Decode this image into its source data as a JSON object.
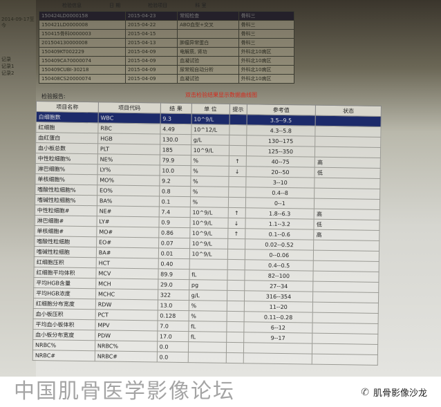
{
  "left_panel": {
    "items": [
      "2014-09-17至今",
      "记录",
      "记录1",
      "记录2"
    ]
  },
  "top_tabs": [
    "检验信息",
    "日 期",
    "检验项目",
    "科 室"
  ],
  "records": [
    [
      "150424LD0000158",
      "2015-04-23",
      "常规检查",
      "骨科三"
    ],
    [
      "150421LD0000008",
      "2015-04-22",
      "ABO血型+交叉",
      "骨科三"
    ],
    [
      "150415骨科0000003",
      "2015-04-15",
      "",
      "骨科三"
    ],
    [
      "201504130000008",
      "2015-04-13",
      "肿瘤异常蛋白",
      "骨科三"
    ],
    [
      "150409KT002229",
      "2015-04-09",
      "电解质, 肾功",
      "外科北10病区"
    ],
    [
      "150409CA70000074",
      "2015-04-09",
      "血凝试验",
      "外科北10病区"
    ],
    [
      "150409CUBI-30218",
      "2015-04-09",
      "尿常规自动分析",
      "外科北10病区"
    ],
    [
      "150408CS20000074",
      "2015-04-09",
      "血凝试验",
      "外科北10病区"
    ]
  ],
  "report": {
    "label": "检验报告:",
    "hint": "双击检验结果显示数据曲线图",
    "hint_color": "#d42a1c"
  },
  "table": {
    "headers": [
      "项目名称",
      "项目代码",
      "结 果",
      "单 位",
      "提示",
      "参考值",
      "状态"
    ],
    "rows": [
      [
        "白细胞数",
        "WBC",
        "9.3",
        "10^9/L",
        "",
        "3.5--9.5",
        ""
      ],
      [
        "红细胞",
        "RBC",
        "4.49",
        "10^12/L",
        "",
        "4.3--5.8",
        ""
      ],
      [
        "血红蛋白",
        "HGB",
        "130.0",
        "g/L",
        "",
        "130--175",
        ""
      ],
      [
        "血小板总数",
        "PLT",
        "185",
        "10^9/L",
        "",
        "125--350",
        ""
      ],
      [
        "中性粒细胞%",
        "NE%",
        "79.9",
        "%",
        "↑",
        "40--75",
        "高"
      ],
      [
        "淋巴细胞%",
        "LY%",
        "10.0",
        "%",
        "↓",
        "20--50",
        "低"
      ],
      [
        "单核细胞%",
        "MO%",
        "9.2",
        "%",
        "",
        "3--10",
        ""
      ],
      [
        "嗜酸性粒细胞%",
        "EO%",
        "0.8",
        "%",
        "",
        "0.4--8",
        ""
      ],
      [
        "嗜碱性粒细胞%",
        "BA%",
        "0.1",
        "%",
        "",
        "0--1",
        ""
      ],
      [
        "中性粒细胞#",
        "NE#",
        "7.4",
        "10^9/L",
        "↑",
        "1.8--6.3",
        "高"
      ],
      [
        "淋巴细胞#",
        "LY#",
        "0.9",
        "10^9/L",
        "↓",
        "1.1--3.2",
        "低"
      ],
      [
        "单核细胞#",
        "MO#",
        "0.86",
        "10^9/L",
        "↑",
        "0.1--0.6",
        "高"
      ],
      [
        "嗜酸性粒细胞",
        "EO#",
        "0.07",
        "10^9/L",
        "",
        "0.02--0.52",
        ""
      ],
      [
        "嗜碱性粒细胞",
        "BA#",
        "0.01",
        "10^9/L",
        "",
        "0--0.06",
        ""
      ],
      [
        "红细胞压积",
        "HCT",
        "0.40",
        "",
        "",
        "0.4--0.5",
        ""
      ],
      [
        "红细胞平均体积",
        "MCV",
        "89.9",
        "fL",
        "",
        "82--100",
        ""
      ],
      [
        "平均HGB含量",
        "MCH",
        "29.0",
        "pg",
        "",
        "27--34",
        ""
      ],
      [
        "平均HGB浓度",
        "MCHC",
        "322",
        "g/L",
        "",
        "316--354",
        ""
      ],
      [
        "红细胞分布宽度",
        "RDW",
        "13.0",
        "%",
        "",
        "11--20",
        ""
      ],
      [
        "血小板压积",
        "PCT",
        "0.128",
        "%",
        "",
        "0.11--0.28",
        ""
      ],
      [
        "平均血小板体积",
        "MPV",
        "7.0",
        "fL",
        "",
        "6--12",
        ""
      ],
      [
        "血小板分布宽度",
        "PDW",
        "17.0",
        "fL",
        "",
        "9--17",
        ""
      ],
      [
        "NRBC%",
        "NRBC%",
        "0.0",
        "",
        "",
        "",
        ""
      ],
      [
        "NRBC#",
        "NRBC#",
        "0.0",
        "",
        "",
        "",
        ""
      ]
    ],
    "selected_row_color": "#1c2a6a"
  },
  "watermark": [
    "中",
    "国",
    "肌",
    "骨",
    "医",
    "学",
    "影",
    "像",
    "论",
    "坛"
  ],
  "footer": {
    "logo_text": "肌骨影像沙龙",
    "icon": "wechat-icon"
  }
}
